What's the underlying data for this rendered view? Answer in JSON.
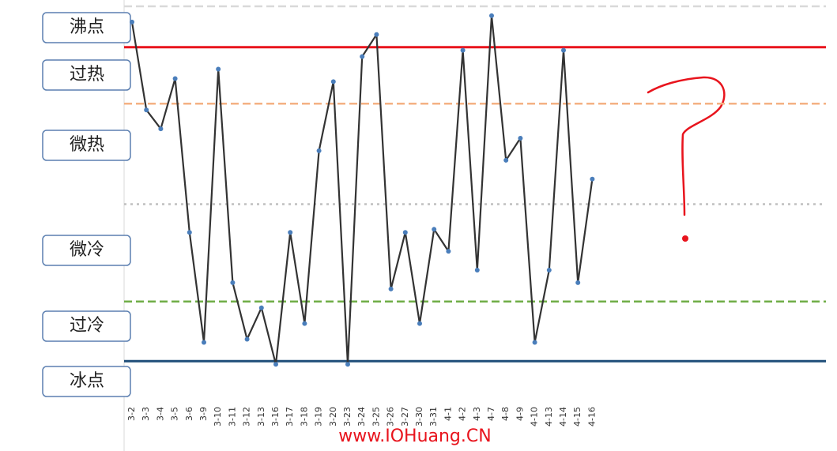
{
  "chart_data": {
    "type": "line",
    "zone_labels": [
      "沸点",
      "过热",
      "微热",
      "微冷",
      "过冷",
      "冰点"
    ],
    "categories": [
      "3-2",
      "3-3",
      "3-4",
      "3-5",
      "3-6",
      "3-9",
      "3-10",
      "3-11",
      "3-12",
      "3-13",
      "3-16",
      "3-17",
      "3-18",
      "3-19",
      "3-20",
      "3-23",
      "3-24",
      "3-25",
      "3-26",
      "3-27",
      "3-30",
      "3-31",
      "4-1",
      "4-2",
      "4-3",
      "4-7",
      "4-8",
      "4-9",
      "4-10",
      "4-13",
      "4-14",
      "4-15",
      "4-16"
    ],
    "series": [
      {
        "color": "#333333",
        "marker_color": "#4a7ebb",
        "values": [
          108,
          80,
          74,
          90,
          41,
          6,
          93,
          25,
          7,
          17,
          -1,
          41,
          12,
          67,
          89,
          -1,
          97,
          104,
          23,
          41,
          12,
          42,
          35,
          99,
          29,
          110,
          64,
          71,
          6,
          29,
          99,
          25,
          58
        ]
      }
    ],
    "reference_lines": [
      {
        "value": 113,
        "color": "#d9d9d9",
        "style": "dashed"
      },
      {
        "value": 100,
        "color": "#e8141d",
        "style": "solid"
      },
      {
        "value": 82,
        "color": "#f4b183",
        "style": "dashed"
      },
      {
        "value": 50,
        "color": "#bfbfbf",
        "style": "dotted"
      },
      {
        "value": 19,
        "color": "#70ad47",
        "style": "dashed"
      },
      {
        "value": 0,
        "color": "#1f4e79",
        "style": "solid"
      }
    ],
    "ylim": [
      -13,
      113
    ],
    "watermark": "www.IOHuang.CN"
  }
}
